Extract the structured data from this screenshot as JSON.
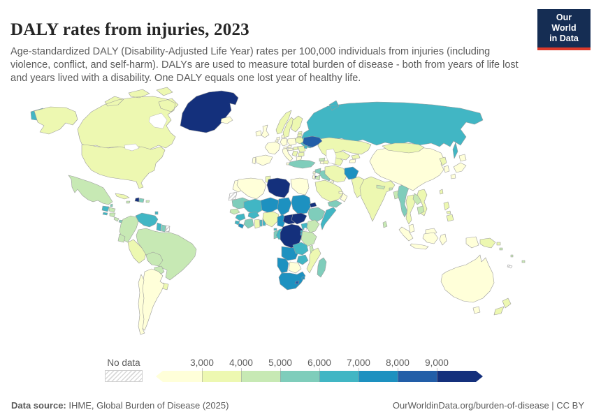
{
  "header": {
    "title": "DALY rates from injuries, 2023",
    "subtitle": "Age-standardized DALY (Disability-Adjusted Life Year) rates per 100,000 individuals from injuries (including violence, conflict, and self-harm). DALYs are used to measure total burden of disease - both from years of life lost and years lived with a disability. One DALY equals one lost year of healthy life.",
    "logo": {
      "line1": "Our World",
      "line2": "in Data",
      "bg_color": "#152d53",
      "accent_color": "#dc3a2b",
      "text_color": "#ffffff"
    }
  },
  "legend": {
    "no_data_label": "No data",
    "tick_labels": [
      "3,000",
      "4,000",
      "5,000",
      "6,000",
      "7,000",
      "8,000",
      "9,000"
    ]
  },
  "footer": {
    "source_label": "Data source:",
    "source_text": " IHME, Global Burden of Disease (2025)",
    "right_text": "OurWorldinData.org/burden-of-disease | CC BY"
  },
  "map_style": {
    "border_color": "#9b9b9b",
    "ocean_color": "#ffffff"
  },
  "chart_data": {
    "type": "heatmap",
    "subtype": "world-choropleth",
    "title": "DALY rates from injuries, 2023",
    "unit": "DALYs per 100,000 individuals",
    "legend_position": "bottom",
    "bins": [
      {
        "label": "<3,000",
        "color": "#ffffd9"
      },
      {
        "label": "3,000–4,000",
        "color": "#edf8b1"
      },
      {
        "label": "4,000–5,000",
        "color": "#c7e9b4"
      },
      {
        "label": "5,000–6,000",
        "color": "#7fcdbb"
      },
      {
        "label": "6,000–7,000",
        "color": "#41b6c4"
      },
      {
        "label": "7,000–8,000",
        "color": "#1d91c0"
      },
      {
        "label": "8,000–9,000",
        "color": "#225ea8"
      },
      {
        "label": ">9,000",
        "color": "#14307c"
      }
    ],
    "no_data": {
      "label": "No data",
      "pattern": "diagonal-hatch"
    },
    "countries": {
      "Canada": 1,
      "United States": 1,
      "Greenland": 7,
      "Iceland": 0,
      "Mexico": 2,
      "Belize": 3,
      "Guatemala": 4,
      "El Salvador": 4,
      "Honduras": 2,
      "Nicaragua": 2,
      "Costa Rica": 2,
      "Panama": 3,
      "Cuba": 1,
      "Jamaica": 2,
      "Haiti": 7,
      "Dominican Republic": 3,
      "Puerto Rico": 2,
      "Trinidad and Tobago": 4,
      "Venezuela": 4,
      "Colombia": 2,
      "Guyana": 4,
      "Suriname": 3,
      "French Guiana": null,
      "Ecuador": 2,
      "Peru": 1,
      "Brazil": 2,
      "Bolivia": 2,
      "Paraguay": 2,
      "Uruguay": 1,
      "Argentina": 0,
      "Chile": 0,
      "Ireland": 0,
      "United Kingdom": 0,
      "Portugal": 0,
      "Spain": 0,
      "France": 0,
      "Belgium": 0,
      "Netherlands": 0,
      "Germany": 0,
      "Denmark": 0,
      "Norway": 1,
      "Sweden": 1,
      "Finland": 1,
      "Estonia": 1,
      "Latvia": 1,
      "Lithuania": 1,
      "Poland": 0,
      "Czechia": 0,
      "Austria": 0,
      "Switzerland": 0,
      "Italy": 0,
      "Hungary": 1,
      "Romania": 1,
      "Serbia": 1,
      "Bulgaria": 1,
      "Greece": 0,
      "Belarus": 1,
      "Ukraine": 6,
      "Moldova": 4,
      "Russia": 4,
      "Kazakhstan": 1,
      "Uzbekistan": 1,
      "Turkmenistan": 1,
      "Kyrgyzstan": 1,
      "Tajikistan": 0,
      "Georgia": 2,
      "Armenia": 0,
      "Azerbaijan": 1,
      "Turkey": 3,
      "Syria": 3,
      "Lebanon": 0,
      "Israel": 0,
      "Palestine": 7,
      "Jordan": 2,
      "Iraq": 3,
      "Kuwait": 0,
      "Saudi Arabia": 1,
      "United Arab Emirates": 0,
      "Oman": 0,
      "Yemen": 3,
      "Iran": 1,
      "Afghanistan": 5,
      "Pakistan": 1,
      "Morocco": 0,
      "Western Sahara": null,
      "Algeria": 0,
      "Tunisia": 1,
      "Libya": 7,
      "Egypt": 0,
      "Mauritania": 3,
      "Senegal": 2,
      "Mali": 4,
      "Guinea": 4,
      "Sierra Leone": 4,
      "Liberia": 5,
      "Cote d'Ivoire": 3,
      "Ghana": 1,
      "Togo": 4,
      "Benin": 4,
      "Burkina Faso": 4,
      "Niger": 5,
      "Nigeria": 1,
      "Chad": 5,
      "Cameroon": 5,
      "Central African Republic": 7,
      "Equatorial Guinea": 4,
      "Gabon": 3,
      "Congo": 4,
      "Democratic Republic of Congo": 7,
      "Sudan": 5,
      "South Sudan": 7,
      "Eritrea": 7,
      "Djibouti": 4,
      "Ethiopia": 3,
      "Somalia": 4,
      "Uganda": 4,
      "Kenya": 2,
      "Rwanda": 4,
      "Burundi": 4,
      "Tanzania": 2,
      "Angola": 5,
      "Zambia": 4,
      "Malawi": 2,
      "Mozambique": 1,
      "Zimbabwe": 4,
      "Botswana": 0,
      "Namibia": 5,
      "South Africa": 5,
      "Lesotho": 6,
      "Eswatini": 5,
      "Madagascar": 3,
      "India": 1,
      "Sri Lanka": 2,
      "Nepal": 2,
      "Bhutan": 2,
      "Bangladesh": 2,
      "Myanmar": 3,
      "Thailand": 1,
      "Laos": 2,
      "Vietnam": 1,
      "Cambodia": 2,
      "Malaysia": 0,
      "Indonesia": 0,
      "Philippines": 1,
      "Papua New Guinea": 1,
      "China": 0,
      "Mongolia": 1,
      "North Korea": 1,
      "South Korea": 0,
      "Japan": 0,
      "Taiwan": 1,
      "Australia": 0,
      "New Zealand": 1,
      "Solomon Islands": 2,
      "Vanuatu": 2,
      "Fiji": 2,
      "New Caledonia": null
    }
  }
}
